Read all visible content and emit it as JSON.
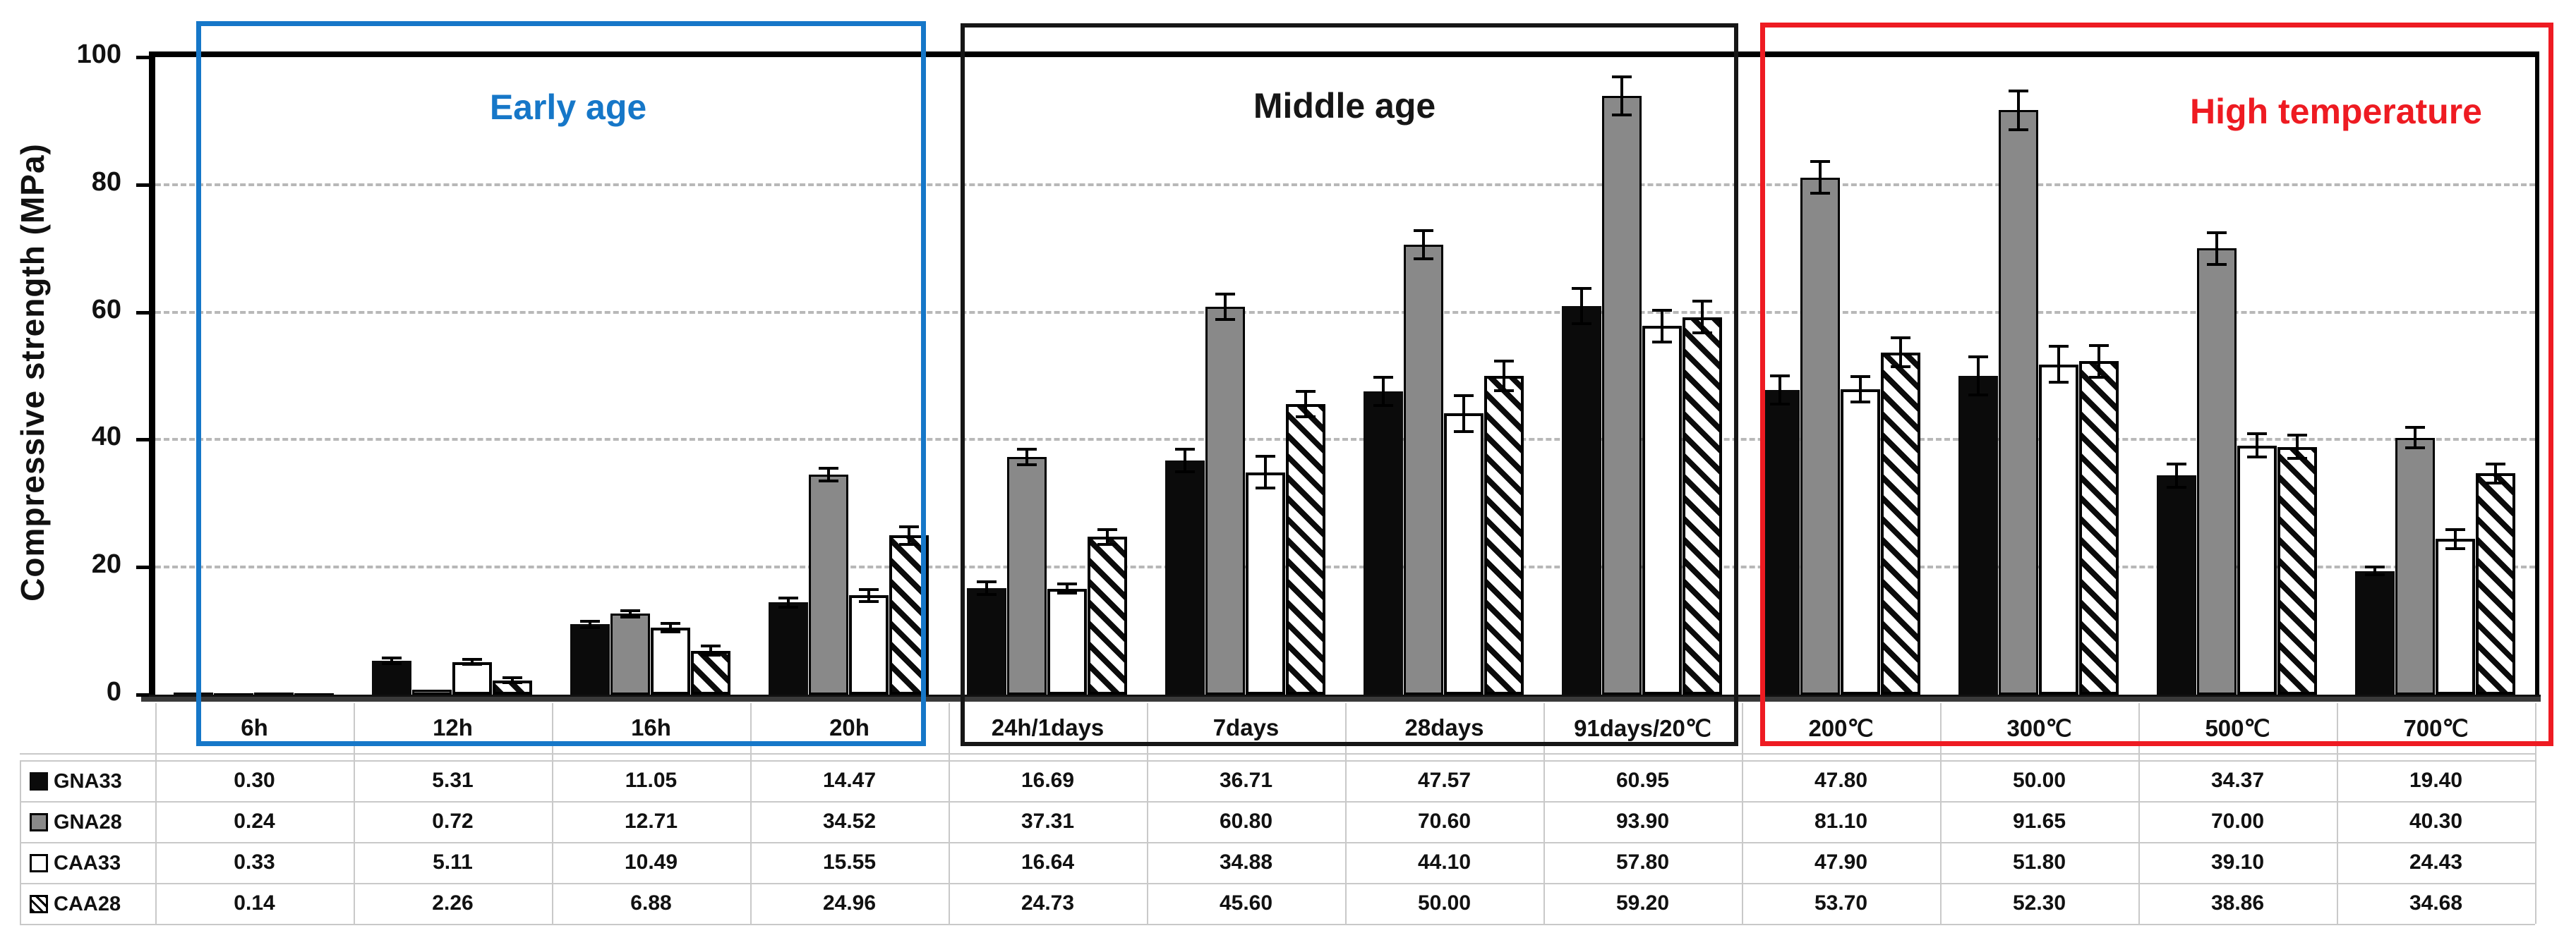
{
  "figure": {
    "colors": {
      "early_age_blue": "#1677c8",
      "middle_age_black": "#161616",
      "high_temp_red": "#ee1b22",
      "bar_black": "#0b0b0b",
      "bar_gray": "#898989",
      "bar_white": "#ffffff",
      "axis_dark": "#3a3a3a",
      "gridline_gray": "#b8b8b8",
      "table_line_gray": "#c9c9c9"
    },
    "annotations": [
      {
        "label": "Early age",
        "color": "#1677c8",
        "category_span": [
          0,
          3
        ]
      },
      {
        "label": "Middle age",
        "color": "#161616",
        "category_span": [
          4,
          7
        ]
      },
      {
        "label": "High temperature",
        "color": "#ee1b22",
        "category_span": [
          8,
          11
        ]
      }
    ]
  },
  "chart_data": {
    "type": "bar",
    "title": "",
    "xlabel": "",
    "ylabel": "Compressive strength (MPa)",
    "ylim": [
      0,
      100
    ],
    "y_ticks": [
      0,
      20,
      40,
      60,
      80,
      100
    ],
    "grid": "horizontal dashed at 20,40,60,80",
    "legend_position": "table-left-column",
    "error_bars": true,
    "categories": [
      "6h",
      "12h",
      "16h",
      "20h",
      "24h/1days",
      "7days",
      "28days",
      "91days/20℃",
      "200℃",
      "300℃",
      "500℃",
      "700℃"
    ],
    "series": [
      {
        "name": "GNA33",
        "style": "solid-black",
        "values": [
          0.3,
          5.31,
          11.05,
          14.47,
          16.69,
          36.71,
          47.57,
          60.95,
          47.8,
          50.0,
          34.37,
          19.4
        ],
        "errors_mpa_est": [
          0,
          0.4,
          0.5,
          0.7,
          1.0,
          1.8,
          2.2,
          2.8,
          2.2,
          3.0,
          1.8,
          0.6
        ]
      },
      {
        "name": "GNA28",
        "style": "solid-gray",
        "values": [
          0.24,
          0.72,
          12.71,
          34.52,
          37.31,
          60.8,
          70.6,
          93.9,
          81.1,
          91.65,
          70.0,
          40.3
        ],
        "errors_mpa_est": [
          0,
          0.15,
          0.5,
          1.0,
          1.2,
          2.0,
          2.2,
          3.0,
          2.5,
          3.0,
          2.5,
          1.6
        ]
      },
      {
        "name": "CAA33",
        "style": "white-outline",
        "values": [
          0.33,
          5.11,
          10.49,
          15.55,
          16.64,
          34.88,
          44.1,
          57.8,
          47.9,
          51.8,
          39.1,
          24.43
        ],
        "errors_mpa_est": [
          0,
          0.4,
          0.7,
          0.9,
          0.7,
          2.5,
          2.8,
          2.5,
          2.0,
          2.8,
          1.8,
          1.5
        ]
      },
      {
        "name": "CAA28",
        "style": "diagonal-hatch",
        "values": [
          0.14,
          2.26,
          6.88,
          24.96,
          24.73,
          45.6,
          50.0,
          59.2,
          53.7,
          52.3,
          38.86,
          34.68
        ],
        "errors_mpa_est": [
          0,
          0.4,
          0.7,
          1.4,
          1.2,
          2.0,
          2.3,
          2.5,
          2.3,
          2.5,
          1.8,
          1.5
        ]
      }
    ]
  },
  "table": {
    "rows": [
      {
        "label": "GNA33",
        "marker": "black-square",
        "values": [
          "0.30",
          "5.31",
          "11.05",
          "14.47",
          "16.69",
          "36.71",
          "47.57",
          "60.95",
          "47.80",
          "50.00",
          "34.37",
          "19.40"
        ]
      },
      {
        "label": "GNA28",
        "marker": "gray-square",
        "values": [
          "0.24",
          "0.72",
          "12.71",
          "34.52",
          "37.31",
          "60.80",
          "70.60",
          "93.90",
          "81.10",
          "91.65",
          "70.00",
          "40.30"
        ]
      },
      {
        "label": "CAA33",
        "marker": "white-square",
        "values": [
          "0.33",
          "5.11",
          "10.49",
          "15.55",
          "16.64",
          "34.88",
          "44.10",
          "57.80",
          "47.90",
          "51.80",
          "39.10",
          "24.43"
        ]
      },
      {
        "label": "CAA28",
        "marker": "hatched-square",
        "values": [
          "0.14",
          "2.26",
          "6.88",
          "24.96",
          "24.73",
          "45.60",
          "50.00",
          "59.20",
          "53.70",
          "52.30",
          "38.86",
          "34.68"
        ]
      }
    ]
  }
}
